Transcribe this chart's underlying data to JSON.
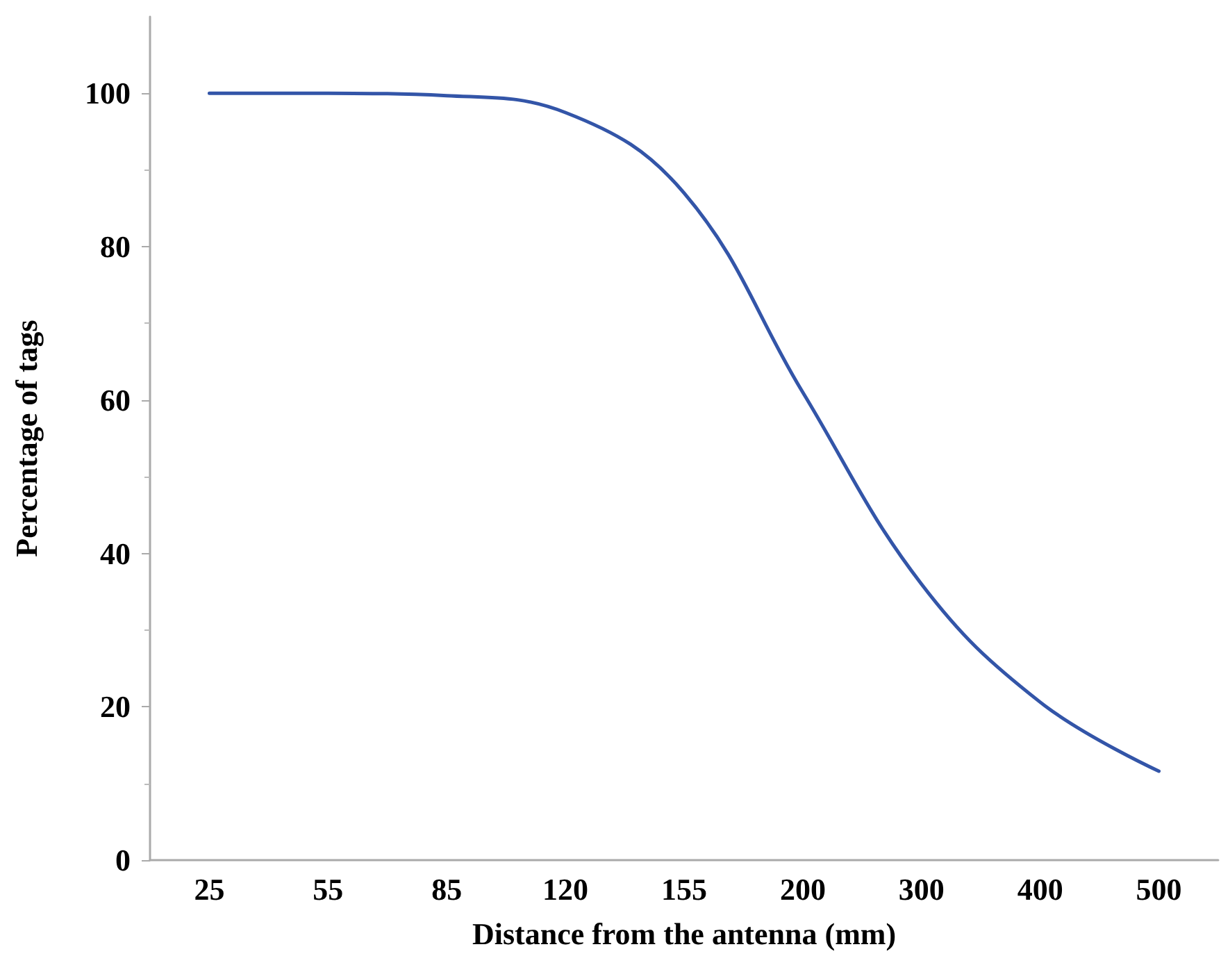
{
  "chart_data": {
    "type": "line",
    "xlabel": "Distance from the antenna (mm)",
    "ylabel": "Percentage of tags",
    "categories": [
      "25",
      "55",
      "85",
      "120",
      "155",
      "200",
      "300",
      "400",
      "500"
    ],
    "series": [
      {
        "color": "#3355a8",
        "values": [
          100,
          100,
          99.7,
          97.5,
          87,
          61,
          36,
          20.6,
          11.6
        ]
      }
    ],
    "ylim": [
      0,
      110
    ],
    "yticks": [
      0,
      20,
      40,
      60,
      80,
      100
    ],
    "grid": false,
    "marker": "none",
    "line_style": "solid"
  }
}
